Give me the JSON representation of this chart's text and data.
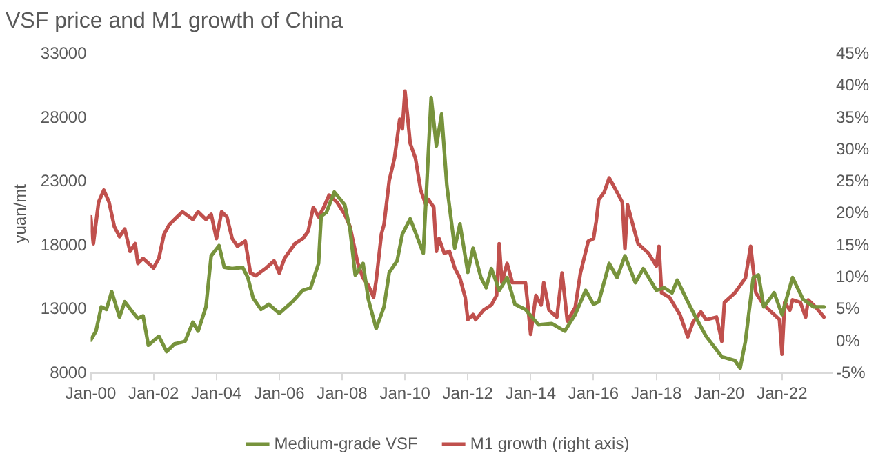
{
  "chart_data": {
    "type": "line",
    "title": "VSF price and M1 growth of China",
    "ylabel": "yuan/mt",
    "xlim": [
      "2000-01",
      "2023-08"
    ],
    "xticks": [
      {
        "value": "2000-01",
        "label": "Jan-00"
      },
      {
        "value": "2002-01",
        "label": "Jan-02"
      },
      {
        "value": "2004-01",
        "label": "Jan-04"
      },
      {
        "value": "2006-01",
        "label": "Jan-06"
      },
      {
        "value": "2008-01",
        "label": "Jan-08"
      },
      {
        "value": "2010-01",
        "label": "Jan-10"
      },
      {
        "value": "2012-01",
        "label": "Jan-12"
      },
      {
        "value": "2014-01",
        "label": "Jan-14"
      },
      {
        "value": "2016-01",
        "label": "Jan-16"
      },
      {
        "value": "2018-01",
        "label": "Jan-18"
      },
      {
        "value": "2020-01",
        "label": "Jan-20"
      },
      {
        "value": "2022-01",
        "label": "Jan-22"
      }
    ],
    "ylim": [
      8000,
      33000
    ],
    "yticks": [
      8000,
      13000,
      18000,
      23000,
      28000,
      33000
    ],
    "y2lim": [
      -5,
      45
    ],
    "y2ticks": [
      {
        "value": -5,
        "label": "-5%"
      },
      {
        "value": 0,
        "label": "0%"
      },
      {
        "value": 5,
        "label": "5%"
      },
      {
        "value": 10,
        "label": "10%"
      },
      {
        "value": 15,
        "label": "15%"
      },
      {
        "value": 20,
        "label": "20%"
      },
      {
        "value": 25,
        "label": "25%"
      },
      {
        "value": 30,
        "label": "30%"
      },
      {
        "value": 35,
        "label": "35%"
      },
      {
        "value": 40,
        "label": "40%"
      },
      {
        "value": 45,
        "label": "45%"
      }
    ],
    "grid": false,
    "legend": "bottom",
    "marker": "none",
    "line_style": "solid",
    "series": [
      {
        "name": "Medium-grade VSF",
        "color": "#77933c",
        "x": [
          "2000-01",
          "2000-03",
          "2000-05",
          "2000-07",
          "2000-09",
          "2000-12",
          "2001-02",
          "2001-05",
          "2001-07",
          "2001-09",
          "2001-11",
          "2002-03",
          "2002-06",
          "2002-09",
          "2003-01",
          "2003-04",
          "2003-06",
          "2003-09",
          "2003-11",
          "2004-02",
          "2004-04",
          "2004-07",
          "2004-11",
          "2005-01",
          "2005-03",
          "2005-06",
          "2005-09",
          "2006-01",
          "2006-06",
          "2006-10",
          "2007-01",
          "2007-04",
          "2007-05",
          "2007-07",
          "2007-10",
          "2008-02",
          "2008-04",
          "2008-06",
          "2008-09",
          "2008-11",
          "2009-02",
          "2009-05",
          "2009-07",
          "2009-10",
          "2009-12",
          "2010-03",
          "2010-06",
          "2010-08",
          "2010-11",
          "2011-01",
          "2011-03",
          "2011-05",
          "2011-08",
          "2011-10",
          "2012-01",
          "2012-03",
          "2012-06",
          "2012-08",
          "2012-10",
          "2013-01",
          "2013-04",
          "2013-07",
          "2013-11",
          "2014-04",
          "2014-09",
          "2015-02",
          "2015-06",
          "2015-10",
          "2016-01",
          "2016-03",
          "2016-07",
          "2016-10",
          "2017-01",
          "2017-05",
          "2017-08",
          "2018-01",
          "2018-04",
          "2018-07",
          "2018-09",
          "2019-01",
          "2019-04",
          "2019-08",
          "2020-02",
          "2020-07",
          "2020-09",
          "2020-11",
          "2021-02",
          "2021-04",
          "2021-06",
          "2021-10",
          "2022-01",
          "2022-05",
          "2022-09",
          "2023-01",
          "2023-05"
        ],
        "values": [
          10600,
          11300,
          13200,
          13000,
          14400,
          12400,
          13600,
          12800,
          12300,
          12500,
          10200,
          10900,
          9700,
          10300,
          10500,
          12000,
          11300,
          13200,
          17200,
          18000,
          16300,
          16200,
          16300,
          15500,
          13900,
          13000,
          13400,
          12700,
          13600,
          14500,
          14700,
          16600,
          20300,
          20600,
          22200,
          21200,
          19300,
          15700,
          16600,
          13800,
          11500,
          13200,
          15900,
          16800,
          18900,
          20100,
          18500,
          17400,
          29600,
          25800,
          28300,
          22700,
          17800,
          19700,
          15900,
          17800,
          15500,
          14700,
          16200,
          14500,
          15500,
          13400,
          13000,
          11800,
          11900,
          11300,
          12600,
          14500,
          13400,
          13600,
          16600,
          15500,
          17200,
          15100,
          16200,
          14500,
          14700,
          14300,
          15300,
          13600,
          12400,
          10900,
          9300,
          9000,
          8400,
          10500,
          15500,
          15700,
          13200,
          14300,
          12600,
          15500,
          13800,
          13200,
          13200
        ]
      },
      {
        "name": "M1 growth (right axis)",
        "color": "#c0504d",
        "axis": "y2",
        "x": [
          "2000-01",
          "2000-02",
          "2000-04",
          "2000-06",
          "2000-08",
          "2000-10",
          "2000-12",
          "2001-02",
          "2001-04",
          "2001-06",
          "2001-07",
          "2001-09",
          "2002-01",
          "2002-03",
          "2002-05",
          "2002-07",
          "2002-09",
          "2002-12",
          "2003-04",
          "2003-06",
          "2003-09",
          "2003-11",
          "2004-01",
          "2004-03",
          "2004-05",
          "2004-07",
          "2004-09",
          "2004-12",
          "2005-02",
          "2005-04",
          "2005-08",
          "2005-11",
          "2006-01",
          "2006-03",
          "2006-07",
          "2006-10",
          "2006-12",
          "2007-02",
          "2007-04",
          "2007-06",
          "2007-08",
          "2007-11",
          "2008-02",
          "2008-04",
          "2008-07",
          "2008-09",
          "2008-11",
          "2009-01",
          "2009-02",
          "2009-04",
          "2009-05",
          "2009-07",
          "2009-09",
          "2009-11",
          "2009-12",
          "2010-01",
          "2010-02",
          "2010-03",
          "2010-05",
          "2010-07",
          "2010-09",
          "2010-10",
          "2010-12",
          "2011-01",
          "2011-02",
          "2011-04",
          "2011-06",
          "2011-08",
          "2011-10",
          "2011-12",
          "2012-01",
          "2012-03",
          "2012-04",
          "2012-07",
          "2012-10",
          "2012-12",
          "2013-01",
          "2013-02",
          "2013-04",
          "2013-06",
          "2013-11",
          "2013-12",
          "2014-01",
          "2014-03",
          "2014-05",
          "2014-06",
          "2014-08",
          "2014-11",
          "2015-01",
          "2015-03",
          "2015-06",
          "2015-08",
          "2015-11",
          "2016-01",
          "2016-02",
          "2016-03",
          "2016-05",
          "2016-07",
          "2016-09",
          "2016-12",
          "2017-01",
          "2017-02",
          "2017-04",
          "2017-06",
          "2017-10",
          "2018-01",
          "2018-02",
          "2018-03",
          "2018-06",
          "2018-10",
          "2019-01",
          "2019-03",
          "2019-06",
          "2019-08",
          "2019-12",
          "2020-02",
          "2020-03",
          "2020-07",
          "2020-11",
          "2021-01",
          "2021-03",
          "2021-06",
          "2021-10",
          "2021-12",
          "2022-01",
          "2022-02",
          "2022-04",
          "2022-05",
          "2022-08",
          "2022-10",
          "2022-11",
          "2023-02",
          "2023-05"
        ],
        "values": [
          19.5,
          15.3,
          21.8,
          23.7,
          21.8,
          18.0,
          16.4,
          17.6,
          14.1,
          15.3,
          12.2,
          13.0,
          11.5,
          13.0,
          16.8,
          18.3,
          19.1,
          20.3,
          19.1,
          20.3,
          19.1,
          19.9,
          16.1,
          20.3,
          19.5,
          16.1,
          14.9,
          15.7,
          10.7,
          10.3,
          11.5,
          12.6,
          10.7,
          13.0,
          15.3,
          16.1,
          17.2,
          21.0,
          19.5,
          21.0,
          22.9,
          21.8,
          19.9,
          18.0,
          12.2,
          9.9,
          8.8,
          6.9,
          9.5,
          16.8,
          18.3,
          25.2,
          28.7,
          34.8,
          33.3,
          39.2,
          35.2,
          31.0,
          28.7,
          23.7,
          21.4,
          22.2,
          21.0,
          14.1,
          16.1,
          13.8,
          14.1,
          11.5,
          9.9,
          6.9,
          3.4,
          4.2,
          3.4,
          4.9,
          5.7,
          7.2,
          15.3,
          9.2,
          12.2,
          9.2,
          9.2,
          5.3,
          1.1,
          7.2,
          5.7,
          9.2,
          4.9,
          3.8,
          10.7,
          3.2,
          5.3,
          10.7,
          15.7,
          16.1,
          18.7,
          22.2,
          23.3,
          25.6,
          24.1,
          21.8,
          14.5,
          21.4,
          18.3,
          15.3,
          13.8,
          11.8,
          14.9,
          7.6,
          6.9,
          4.2,
          0.7,
          3.0,
          4.6,
          3.4,
          3.8,
          0.0,
          6.1,
          7.6,
          9.9,
          14.9,
          7.6,
          5.7,
          4.2,
          3.4,
          -2.0,
          6.1,
          4.9,
          6.5,
          6.1,
          3.8,
          6.5,
          5.3,
          3.8
        ]
      }
    ]
  }
}
